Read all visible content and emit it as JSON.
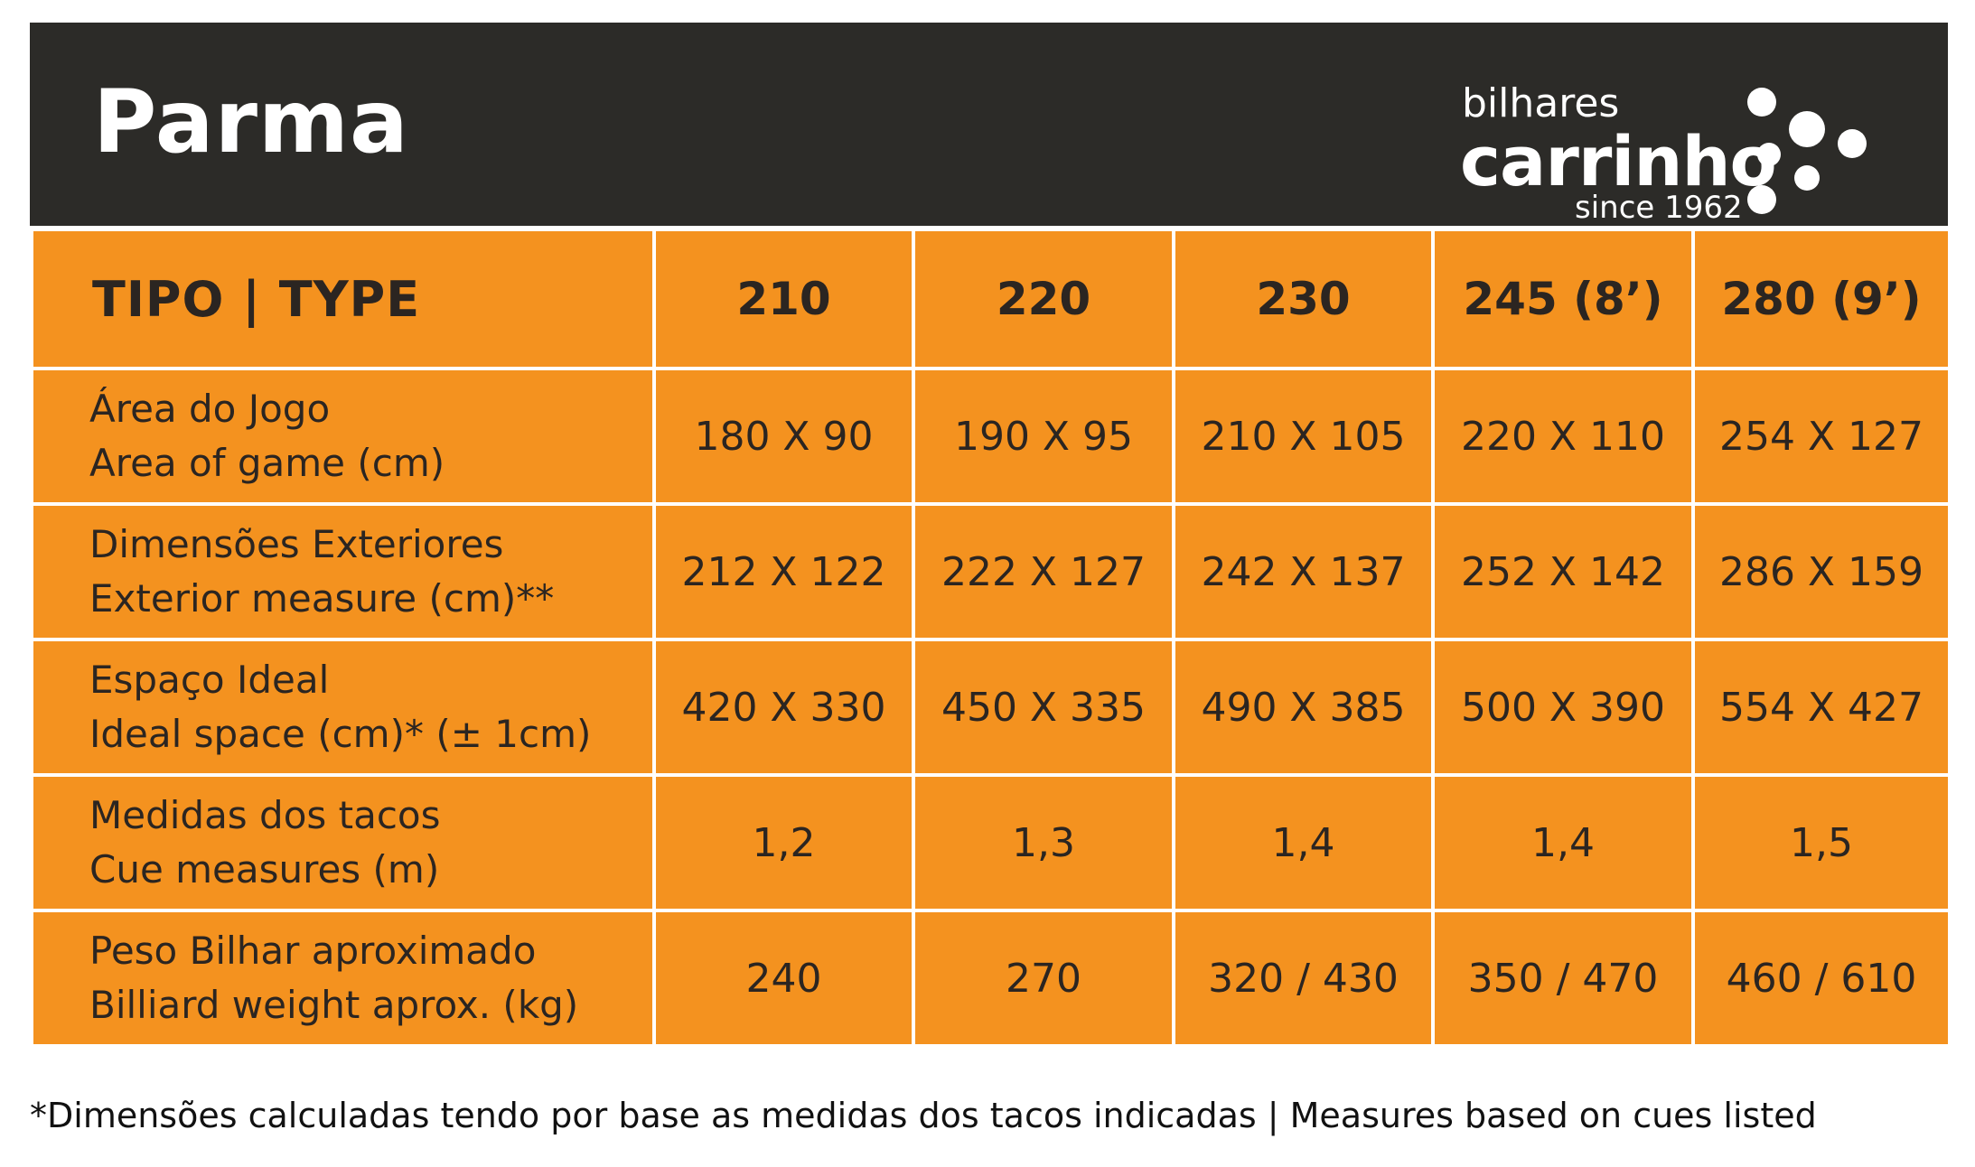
{
  "header": {
    "title": "Parma",
    "logo": {
      "line1": "bilhares",
      "brand": "carrinho",
      "tagline": "since 1962",
      "icon": "billiard-balls-icon",
      "color": "#ffffff"
    },
    "background": "#2c2b28"
  },
  "table": {
    "accent": "#f4921f",
    "header_label": "TIPO | TYPE",
    "columns": [
      "210",
      "220",
      "230",
      "245 (8’)",
      "280 (9’)"
    ],
    "rows": [
      {
        "label_pt": "Área do Jogo",
        "label_en": "Area of game (cm)",
        "values": [
          "180 X 90",
          "190 X 95",
          "210 X 105",
          "220 X 110",
          "254 X 127"
        ]
      },
      {
        "label_pt": "Dimensões Exteriores",
        "label_en": "Exterior measure (cm)**",
        "values": [
          "212 X 122",
          "222 X 127",
          "242 X 137",
          "252 X 142",
          "286 X 159"
        ]
      },
      {
        "label_pt": "Espaço Ideal",
        "label_en": "Ideal space (cm)* (± 1cm)",
        "values": [
          "420 X 330",
          "450 X 335",
          "490 X 385",
          "500 X 390",
          "554 X 427"
        ]
      },
      {
        "label_pt": "Medidas dos tacos",
        "label_en": "Cue measures (m)",
        "values": [
          "1,2",
          "1,3",
          "1,4",
          "1,4",
          "1,5"
        ]
      },
      {
        "label_pt": "Peso Bilhar aproximado",
        "label_en": "Billiard weight aprox. (kg)",
        "values": [
          "240",
          "270",
          "320 / 430",
          "350 / 470",
          "460 / 610"
        ]
      }
    ]
  },
  "footnote": "*Dimensões calculadas tendo por base as medidas dos tacos indicadas | Measures based on cues listed"
}
